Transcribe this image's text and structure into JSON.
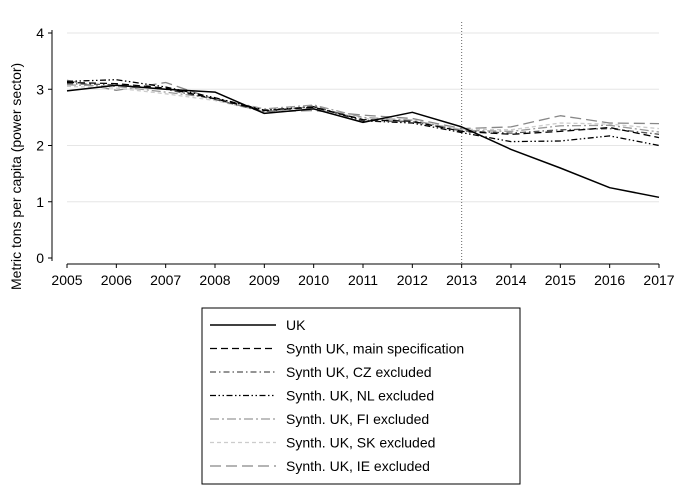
{
  "chart_data": {
    "type": "line",
    "title": "",
    "xlabel": "",
    "ylabel": "Metric tons per capita (power sector)",
    "x": [
      2005,
      2006,
      2007,
      2008,
      2009,
      2010,
      2011,
      2012,
      2013,
      2014,
      2015,
      2016,
      2017
    ],
    "xlim": [
      2005,
      2017
    ],
    "ylim": [
      0,
      4
    ],
    "yticks": [
      0,
      1,
      2,
      3,
      4
    ],
    "grid": "horizontal",
    "vline_x": 2013,
    "legend_position": "bottom",
    "series": [
      {
        "name": "UK",
        "color": "#000000",
        "dash": "solid",
        "values": [
          2.97,
          3.07,
          3.0,
          2.95,
          2.57,
          2.65,
          2.41,
          2.59,
          2.33,
          1.93,
          1.6,
          1.25,
          1.08
        ]
      },
      {
        "name": "Synth UK, main specification",
        "color": "#000000",
        "dash": "dash",
        "values": [
          3.12,
          3.1,
          3.02,
          2.83,
          2.62,
          2.68,
          2.46,
          2.43,
          2.25,
          2.2,
          2.25,
          2.32,
          2.14
        ]
      },
      {
        "name": "Synth UK, CZ excluded",
        "color": "#555555",
        "dash": "dashdot",
        "values": [
          3.1,
          3.08,
          3.0,
          2.82,
          2.6,
          2.7,
          2.45,
          2.42,
          2.26,
          2.22,
          2.28,
          2.3,
          2.2
        ]
      },
      {
        "name": "Synth. UK, NL excluded",
        "color": "#000000",
        "dash": "dashdotdot",
        "values": [
          3.14,
          3.17,
          3.04,
          2.85,
          2.63,
          2.69,
          2.44,
          2.4,
          2.23,
          2.07,
          2.08,
          2.17,
          2.0
        ]
      },
      {
        "name": "Synth. UK, FI excluded",
        "color": "#999999",
        "dash": "longdashdot",
        "values": [
          3.08,
          3.05,
          2.95,
          2.84,
          2.65,
          2.72,
          2.5,
          2.45,
          2.27,
          2.25,
          2.35,
          2.36,
          2.24
        ]
      },
      {
        "name": "Synth. UK, SK excluded",
        "color": "#cccccc",
        "dash": "shortdash",
        "values": [
          3.05,
          3.02,
          2.92,
          2.8,
          2.6,
          2.66,
          2.48,
          2.44,
          2.29,
          2.28,
          2.4,
          2.38,
          2.3
        ]
      },
      {
        "name": "Synth. UK, IE excluded",
        "color": "#888888",
        "dash": "longdash",
        "values": [
          3.16,
          2.98,
          3.12,
          2.82,
          2.6,
          2.62,
          2.54,
          2.48,
          2.3,
          2.33,
          2.53,
          2.4,
          2.39
        ]
      }
    ]
  }
}
